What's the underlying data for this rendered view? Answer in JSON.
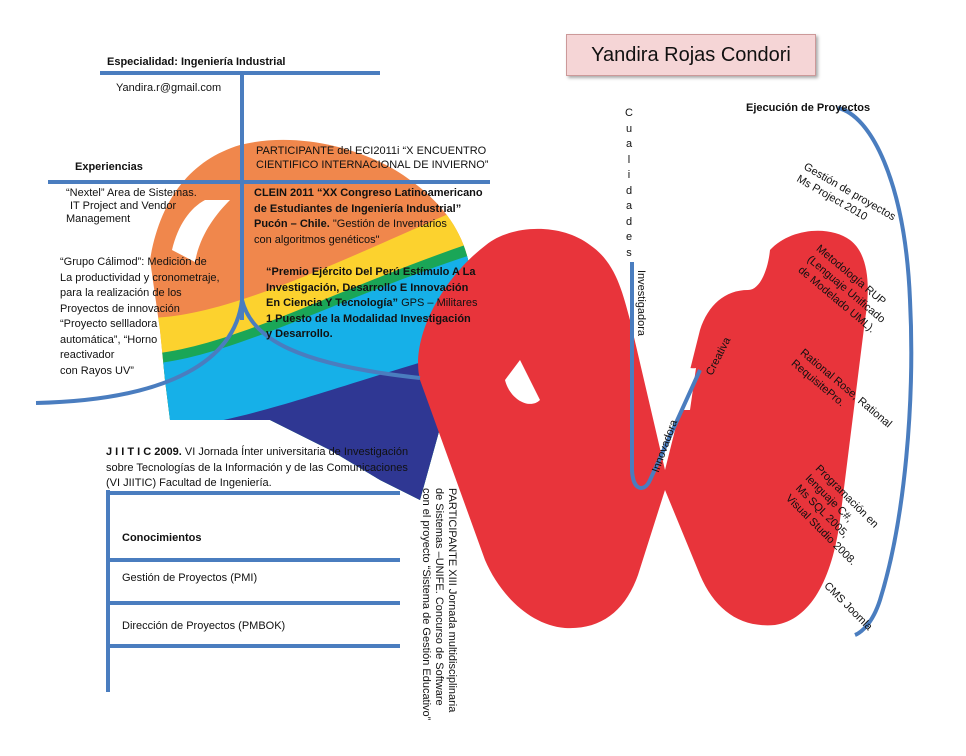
{
  "name": "Yandira Rojas Condori",
  "specialty": "Especialidad: Ingeniería Industrial",
  "email": "Yandira.r@gmail.com",
  "experience": {
    "title": "Experiencias",
    "items": [
      [
        "“Nextel” Area de Sistemas.",
        "IT Project and  Vendor",
        "Management"
      ],
      [
        "“Grupo Cálimod”: Medición de",
        "La  productividad y cronometraje,",
        " para la realización de los",
        "Proyectos  de innovación",
        " “Proyecto sellladora",
        " automática”, “Horno",
        " reactivador",
        " con Rayos UV”"
      ]
    ]
  },
  "events": {
    "eci": [
      "PARTICIPANTE del ECI2011i “X ENCUENTRO",
      "CIENTIFICO INTERNACIONAL DE INVIERNO”"
    ],
    "clein_bold": [
      "CLEIN 2011 “XX Congreso Latinoamericano",
      "de Estudiantes de Ingeniería Industrial”",
      "Pucón – Chile."
    ],
    "clein_rest": [
      " \"Gestión de Inventarios",
      "con algoritmos genéticos\""
    ],
    "premio_bold": [
      "“Premio Ejército Del Perú Estímulo A La",
      "Investigación,  Desarrollo E Innovación",
      "En Ciencia Y Tecnología”"
    ],
    "premio_mid": " GPS – Militares",
    "premio_bold2": [
      "1 Puesto  de la Modalidad Investigación",
      "y Desarrollo."
    ],
    "jiitic_bold": "J I I T I C 2009.",
    "jiitic_rest": [
      " VI Jornada Ínter universitaria de Investigación",
      "sobre Tecnologías de la Información y de las Comunicaciones",
      "(VI JIITIC) Facultad de Ingeniería."
    ],
    "unife": [
      "PARTICIPANTE XIII Jornada multidisciplinaria",
      "de Sistemas –UNIFE. Concurso de Software",
      "con el proyecto “Sistema de Gestión Educativo”"
    ]
  },
  "knowledge": {
    "title": "Conocimientos",
    "items": [
      "Gestión de Proyectos (PMI)",
      "Dirección de Proyectos (PMBOK)"
    ]
  },
  "qualities": {
    "title_letters": [
      "C",
      "u",
      "a",
      "l",
      "i",
      "d",
      "a",
      "d",
      "e",
      "s"
    ],
    "items": [
      "Investigadora",
      "Innovadora",
      "Creativa"
    ]
  },
  "projects": {
    "title": "Ejecución de Proyectos",
    "items": [
      [
        "Gestión de proyectos",
        "Ms Project 2010"
      ],
      [
        "Metodología RUP",
        "(Lenguaje Unificado",
        "de Modelado UML)."
      ],
      [
        "Rational Rose, Rational",
        "RequisitePro."
      ],
      [
        "Programación en",
        "lenguaje C#,",
        "Ms SQL 2005,",
        "Visual Studio  2008."
      ],
      [
        "CMS Joomla"
      ]
    ]
  },
  "colors": {
    "orange": "#f0874c",
    "yellow": "#fcd22e",
    "green": "#1aa657",
    "cyan": "#16b0e8",
    "navy": "#2f3793",
    "red": "#e8343b",
    "line": "#4a7dbf"
  }
}
